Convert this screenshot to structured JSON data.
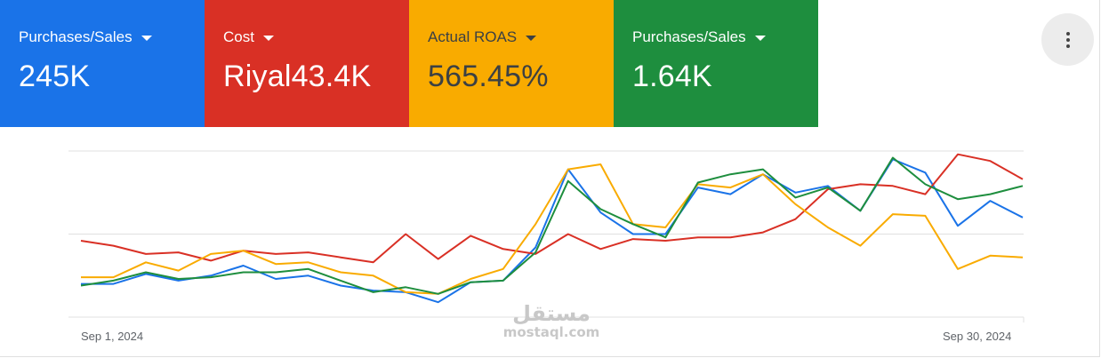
{
  "scorecards": [
    {
      "label": "Purchases/Sales",
      "value": "245K",
      "color": "#1a73e8",
      "text_color": "#ffffff"
    },
    {
      "label": "Cost",
      "value": "Riyal43.4K",
      "color": "#d93025",
      "text_color": "#ffffff"
    },
    {
      "label": "Actual ROAS",
      "value": "565.45%",
      "color": "#f9ab00",
      "text_color": "#3c4043"
    },
    {
      "label": "Purchases/Sales",
      "value": "1.64K",
      "color": "#1e8e3e",
      "text_color": "#ffffff"
    }
  ],
  "menu": {
    "icon": "more-vert-icon"
  },
  "watermark": {
    "arabic": "مستقل",
    "latin": "mostaql.com"
  },
  "chart_data": {
    "type": "line",
    "x_start_label": "Sep 1, 2024",
    "x_end_label": "Sep 30, 2024",
    "x": [
      "Sep 1",
      "Sep 2",
      "Sep 3",
      "Sep 4",
      "Sep 5",
      "Sep 6",
      "Sep 7",
      "Sep 8",
      "Sep 9",
      "Sep 10",
      "Sep 11",
      "Sep 12",
      "Sep 13",
      "Sep 14",
      "Sep 15",
      "Sep 16",
      "Sep 17",
      "Sep 18",
      "Sep 19",
      "Sep 20",
      "Sep 21",
      "Sep 22",
      "Sep 23",
      "Sep 24",
      "Sep 25",
      "Sep 26",
      "Sep 27",
      "Sep 28",
      "Sep 29",
      "Sep 30"
    ],
    "ylim": [
      0,
      100
    ],
    "grid": true,
    "legend": "scorecards-top",
    "series": [
      {
        "color": "#1a73e8",
        "values": [
          20,
          20,
          26,
          22,
          25,
          31,
          23,
          25,
          19,
          16,
          15,
          9,
          21,
          22,
          42,
          89,
          63,
          50,
          50,
          78,
          74,
          86,
          75,
          79,
          64,
          95,
          87,
          55,
          70,
          60
        ]
      },
      {
        "color": "#d93025",
        "values": [
          46,
          43,
          38,
          39,
          34,
          40,
          38,
          39,
          36,
          33,
          50,
          35,
          49,
          41,
          38,
          50,
          41,
          47,
          46,
          48,
          48,
          51,
          59,
          77,
          80,
          79,
          74,
          98,
          94,
          83
        ]
      },
      {
        "color": "#f9ab00",
        "values": [
          24,
          24,
          33,
          28,
          38,
          40,
          32,
          33,
          27,
          25,
          15,
          14,
          23,
          29,
          56,
          89,
          92,
          56,
          54,
          80,
          78,
          86,
          68,
          54,
          43,
          62,
          61,
          29,
          37,
          36
        ]
      },
      {
        "color": "#1e8e3e",
        "values": [
          19,
          22,
          27,
          23,
          24,
          27,
          27,
          29,
          22,
          15,
          18,
          14,
          21,
          22,
          39,
          82,
          65,
          56,
          48,
          81,
          86,
          89,
          72,
          78,
          64,
          96,
          80,
          71,
          74,
          79
        ]
      }
    ]
  }
}
